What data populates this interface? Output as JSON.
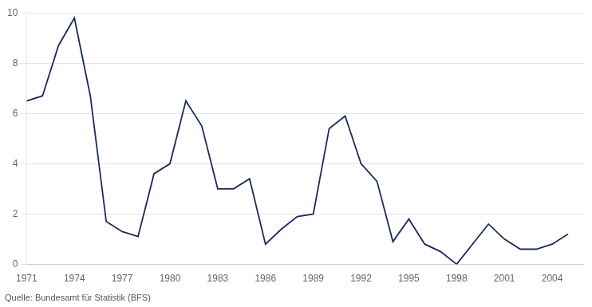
{
  "chart_data": {
    "type": "line",
    "x": [
      1971,
      1972,
      1973,
      1974,
      1975,
      1976,
      1977,
      1978,
      1979,
      1980,
      1981,
      1982,
      1983,
      1984,
      1985,
      1986,
      1987,
      1988,
      1989,
      1990,
      1991,
      1992,
      1993,
      1994,
      1995,
      1996,
      1997,
      1998,
      1999,
      2000,
      2001,
      2002,
      2003,
      2004,
      2005
    ],
    "values": [
      6.5,
      6.7,
      8.7,
      9.8,
      6.7,
      1.7,
      1.3,
      1.1,
      3.6,
      4.0,
      6.5,
      5.5,
      3.0,
      3.0,
      3.4,
      0.8,
      1.4,
      1.9,
      2.0,
      5.4,
      5.9,
      4.0,
      3.3,
      0.9,
      1.8,
      0.8,
      0.5,
      0.0,
      0.8,
      1.6,
      1.0,
      0.6,
      0.6,
      0.8,
      1.2
    ],
    "color": "#1a2a5e",
    "xlim": [
      1971,
      2006
    ],
    "xticks": [
      1971,
      1974,
      1977,
      1980,
      1983,
      1986,
      1989,
      1992,
      1995,
      1998,
      2001,
      2004
    ],
    "ylim": [
      0,
      10
    ],
    "yticks": [
      0,
      2,
      4,
      6,
      8,
      10
    ],
    "grid": "y",
    "source": "Quelle: Bundesamt für Statistik (BFS)"
  }
}
